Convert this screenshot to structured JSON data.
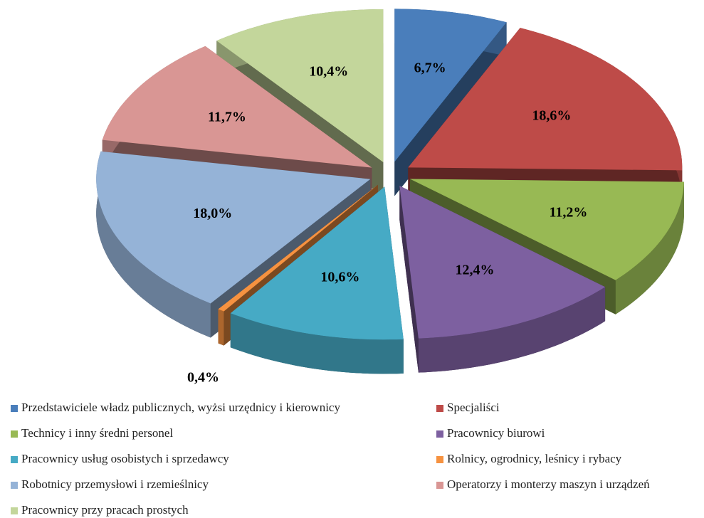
{
  "chart_data": {
    "type": "pie",
    "categories": [
      "Przedstawiciele władz publicznych, wyżsi urzędnicy i kierownicy",
      "Specjaliści",
      "Technicy i inny średni personel",
      "Pracownicy biurowi",
      "Pracownicy usług osobistych i sprzedawcy",
      "Rolnicy, ogrodnicy, leśnicy i rybacy",
      "Robotnicy przemysłowi i rzemieślnicy",
      "Operatorzy i monterzy maszyn i urządzeń",
      "Pracownicy przy pracach prostych"
    ],
    "values": [
      6.7,
      18.6,
      11.2,
      12.4,
      10.6,
      0.4,
      18.0,
      11.7,
      10.4
    ],
    "value_labels": [
      "6,7%",
      "18,6%",
      "11,2%",
      "12,4%",
      "10,6%",
      "0,4%",
      "18,0%",
      "11,7%",
      "10,4%"
    ],
    "colors": [
      "#4a7ebb",
      "#be4b48",
      "#98b954",
      "#7d60a0",
      "#46aac5",
      "#f69240",
      "#95b3d7",
      "#d99694",
      "#c3d69b"
    ],
    "legend": "bottom"
  }
}
